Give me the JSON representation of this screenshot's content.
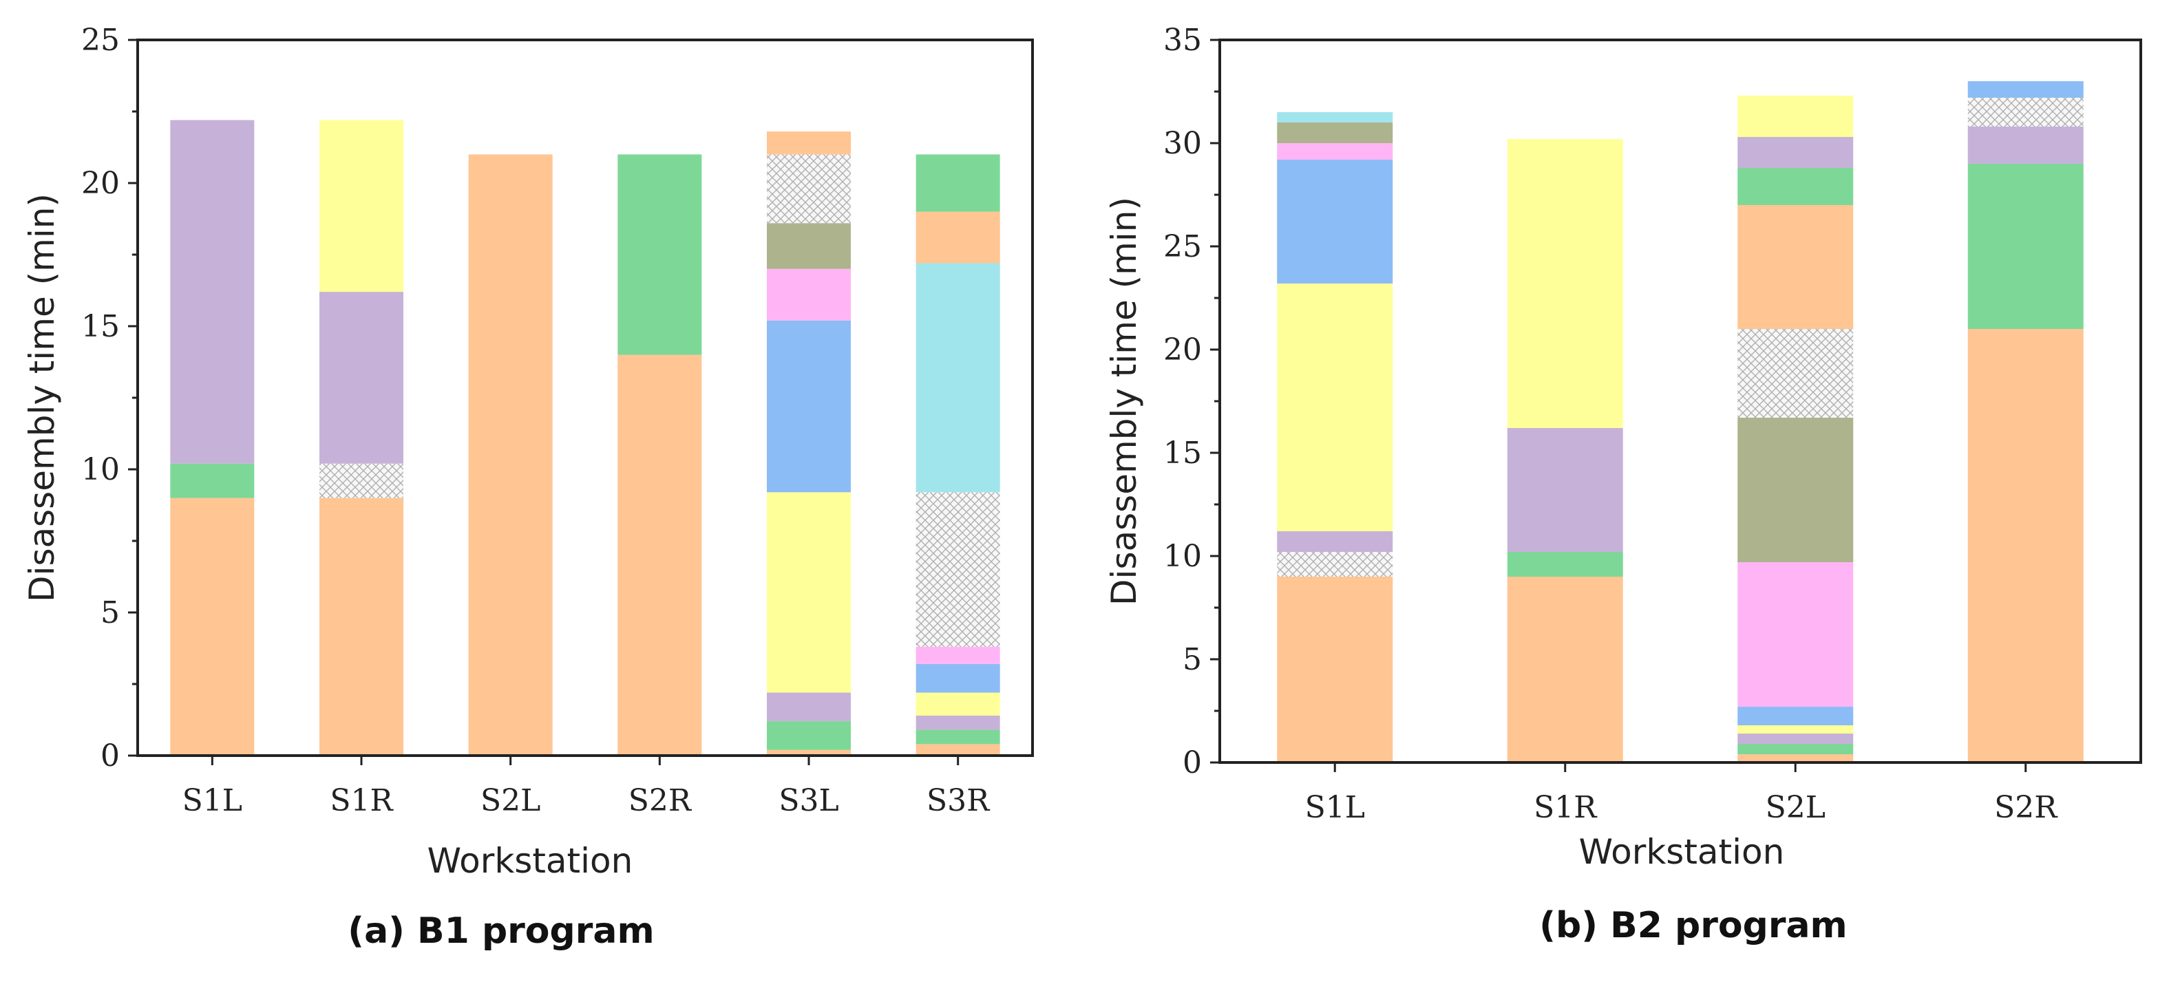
{
  "segment_colors": {
    "orange": "#FFC592",
    "green": "#7DD897",
    "purple": "#C6B2D8",
    "yellow": "#FFFF99",
    "blue": "#8CBCF5",
    "pink": "#FFB5F5",
    "olive": "#ADB38D",
    "cyan": "#A1E5EC",
    "hatch": "hatch"
  },
  "chart_data": [
    {
      "type": "bar",
      "stacked": true,
      "caption": "(a) B1 program",
      "xlabel": "Workstation",
      "ylabel": "Disassembly time (min)",
      "ylim": [
        0,
        25
      ],
      "yticks": [
        0,
        5,
        10,
        15,
        20,
        25
      ],
      "categories": [
        "S1L",
        "S1R",
        "S2L",
        "S2R",
        "S3L",
        "S3R"
      ],
      "stacks": [
        [
          {
            "color": "orange",
            "from": 0,
            "to": 9.0
          },
          {
            "color": "green",
            "from": 9.0,
            "to": 10.2
          },
          {
            "color": "purple",
            "from": 10.2,
            "to": 22.2
          }
        ],
        [
          {
            "color": "orange",
            "from": 0,
            "to": 9.0
          },
          {
            "color": "hatch",
            "from": 9.0,
            "to": 10.2
          },
          {
            "color": "purple",
            "from": 10.2,
            "to": 16.2
          },
          {
            "color": "yellow",
            "from": 16.2,
            "to": 22.2
          }
        ],
        [
          {
            "color": "orange",
            "from": 0,
            "to": 21.0
          }
        ],
        [
          {
            "color": "orange",
            "from": 0,
            "to": 14.0
          },
          {
            "color": "green",
            "from": 14.0,
            "to": 21.0
          }
        ],
        [
          {
            "color": "orange",
            "from": 0,
            "to": 0.2
          },
          {
            "color": "green",
            "from": 0.2,
            "to": 1.2
          },
          {
            "color": "purple",
            "from": 1.2,
            "to": 2.2
          },
          {
            "color": "yellow",
            "from": 2.2,
            "to": 9.2
          },
          {
            "color": "blue",
            "from": 9.2,
            "to": 15.2
          },
          {
            "color": "pink",
            "from": 15.2,
            "to": 17.0
          },
          {
            "color": "olive",
            "from": 17.0,
            "to": 18.6
          },
          {
            "color": "hatch",
            "from": 18.6,
            "to": 21.0
          },
          {
            "color": "orange",
            "from": 21.0,
            "to": 21.8
          }
        ],
        [
          {
            "color": "orange",
            "from": 0,
            "to": 0.4
          },
          {
            "color": "green",
            "from": 0.4,
            "to": 0.9
          },
          {
            "color": "purple",
            "from": 0.9,
            "to": 1.4
          },
          {
            "color": "yellow",
            "from": 1.4,
            "to": 2.2
          },
          {
            "color": "blue",
            "from": 2.2,
            "to": 3.2
          },
          {
            "color": "pink",
            "from": 3.2,
            "to": 3.8
          },
          {
            "color": "hatch",
            "from": 3.8,
            "to": 9.2
          },
          {
            "color": "cyan",
            "from": 9.2,
            "to": 17.2
          },
          {
            "color": "orange",
            "from": 17.2,
            "to": 19.0
          },
          {
            "color": "green",
            "from": 19.0,
            "to": 21.0
          }
        ]
      ]
    },
    {
      "type": "bar",
      "stacked": true,
      "caption": "(b) B2 program",
      "xlabel": "Workstation",
      "ylabel": "Disassembly time (min)",
      "ylim": [
        0,
        35
      ],
      "yticks": [
        0,
        5,
        10,
        15,
        20,
        25,
        30,
        35
      ],
      "categories": [
        "S1L",
        "S1R",
        "S2L",
        "S2R"
      ],
      "stacks": [
        [
          {
            "color": "orange",
            "from": 0,
            "to": 9.0
          },
          {
            "color": "hatch",
            "from": 9.0,
            "to": 10.2
          },
          {
            "color": "purple",
            "from": 10.2,
            "to": 11.2
          },
          {
            "color": "yellow",
            "from": 11.2,
            "to": 23.2
          },
          {
            "color": "blue",
            "from": 23.2,
            "to": 29.2
          },
          {
            "color": "pink",
            "from": 29.2,
            "to": 30.0
          },
          {
            "color": "olive",
            "from": 30.0,
            "to": 31.0
          },
          {
            "color": "cyan",
            "from": 31.0,
            "to": 31.5
          }
        ],
        [
          {
            "color": "orange",
            "from": 0,
            "to": 9.0
          },
          {
            "color": "green",
            "from": 9.0,
            "to": 10.2
          },
          {
            "color": "purple",
            "from": 10.2,
            "to": 16.2
          },
          {
            "color": "yellow",
            "from": 16.2,
            "to": 30.2
          }
        ],
        [
          {
            "color": "orange",
            "from": 0,
            "to": 0.4
          },
          {
            "color": "green",
            "from": 0.4,
            "to": 0.9
          },
          {
            "color": "purple",
            "from": 0.9,
            "to": 1.4
          },
          {
            "color": "yellow",
            "from": 1.4,
            "to": 1.8
          },
          {
            "color": "blue",
            "from": 1.8,
            "to": 2.7
          },
          {
            "color": "pink",
            "from": 2.7,
            "to": 9.7
          },
          {
            "color": "olive",
            "from": 9.7,
            "to": 16.7
          },
          {
            "color": "hatch",
            "from": 16.7,
            "to": 21.0
          },
          {
            "color": "orange",
            "from": 21.0,
            "to": 27.0
          },
          {
            "color": "green",
            "from": 27.0,
            "to": 28.8
          },
          {
            "color": "purple",
            "from": 28.8,
            "to": 30.3
          },
          {
            "color": "yellow",
            "from": 30.3,
            "to": 32.3
          }
        ],
        [
          {
            "color": "orange",
            "from": 0,
            "to": 21.0
          },
          {
            "color": "green",
            "from": 21.0,
            "to": 29.0
          },
          {
            "color": "purple",
            "from": 29.0,
            "to": 30.8
          },
          {
            "color": "hatch",
            "from": 30.8,
            "to": 32.2
          },
          {
            "color": "blue",
            "from": 32.2,
            "to": 33.0
          }
        ]
      ]
    }
  ]
}
